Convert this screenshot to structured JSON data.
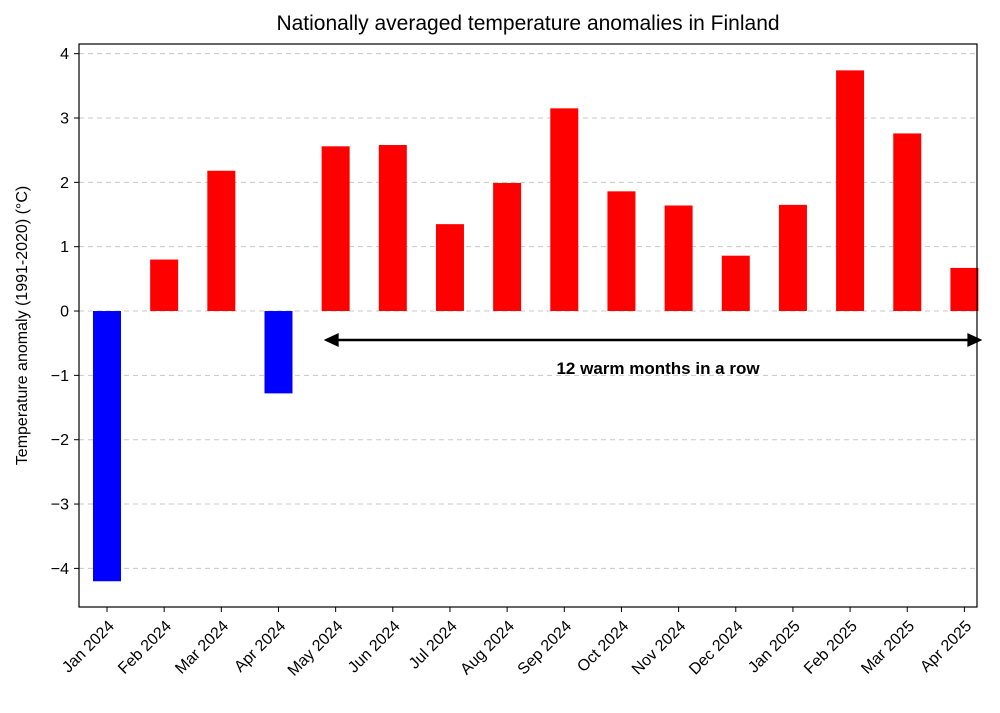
{
  "chart_data": {
    "type": "bar",
    "title": "Nationally averaged temperature anomalies in Finland",
    "xlabel": "",
    "ylabel": "Temperature anomaly (1991-2020) (°C)",
    "categories": [
      "Jan 2024",
      "Feb 2024",
      "Mar 2024",
      "Apr 2024",
      "May 2024",
      "Jun 2024",
      "Jul 2024",
      "Aug 2024",
      "Sep 2024",
      "Oct 2024",
      "Nov 2024",
      "Dec 2024",
      "Jan 2025",
      "Feb 2025",
      "Mar 2025",
      "Apr 2025"
    ],
    "values": [
      -4.2,
      0.8,
      2.18,
      -1.28,
      2.56,
      2.58,
      1.35,
      1.99,
      3.15,
      1.86,
      1.64,
      0.86,
      1.65,
      3.74,
      2.76,
      0.67
    ],
    "ylim": [
      -4.6,
      4.15
    ],
    "yticks": [
      -4,
      -3,
      -2,
      -1,
      0,
      1,
      2,
      3,
      4
    ],
    "ytick_labels": [
      "−4",
      "−3",
      "−2",
      "−1",
      "0",
      "1",
      "2",
      "3",
      "4"
    ],
    "grid": "horizontal-dashed",
    "colors": {
      "positive": "#ff0000",
      "negative": "#0000ff"
    },
    "annotation": {
      "text": "12 warm months in a row",
      "from_category": "May 2024",
      "to_category": "Apr 2025",
      "y": -0.45
    }
  }
}
